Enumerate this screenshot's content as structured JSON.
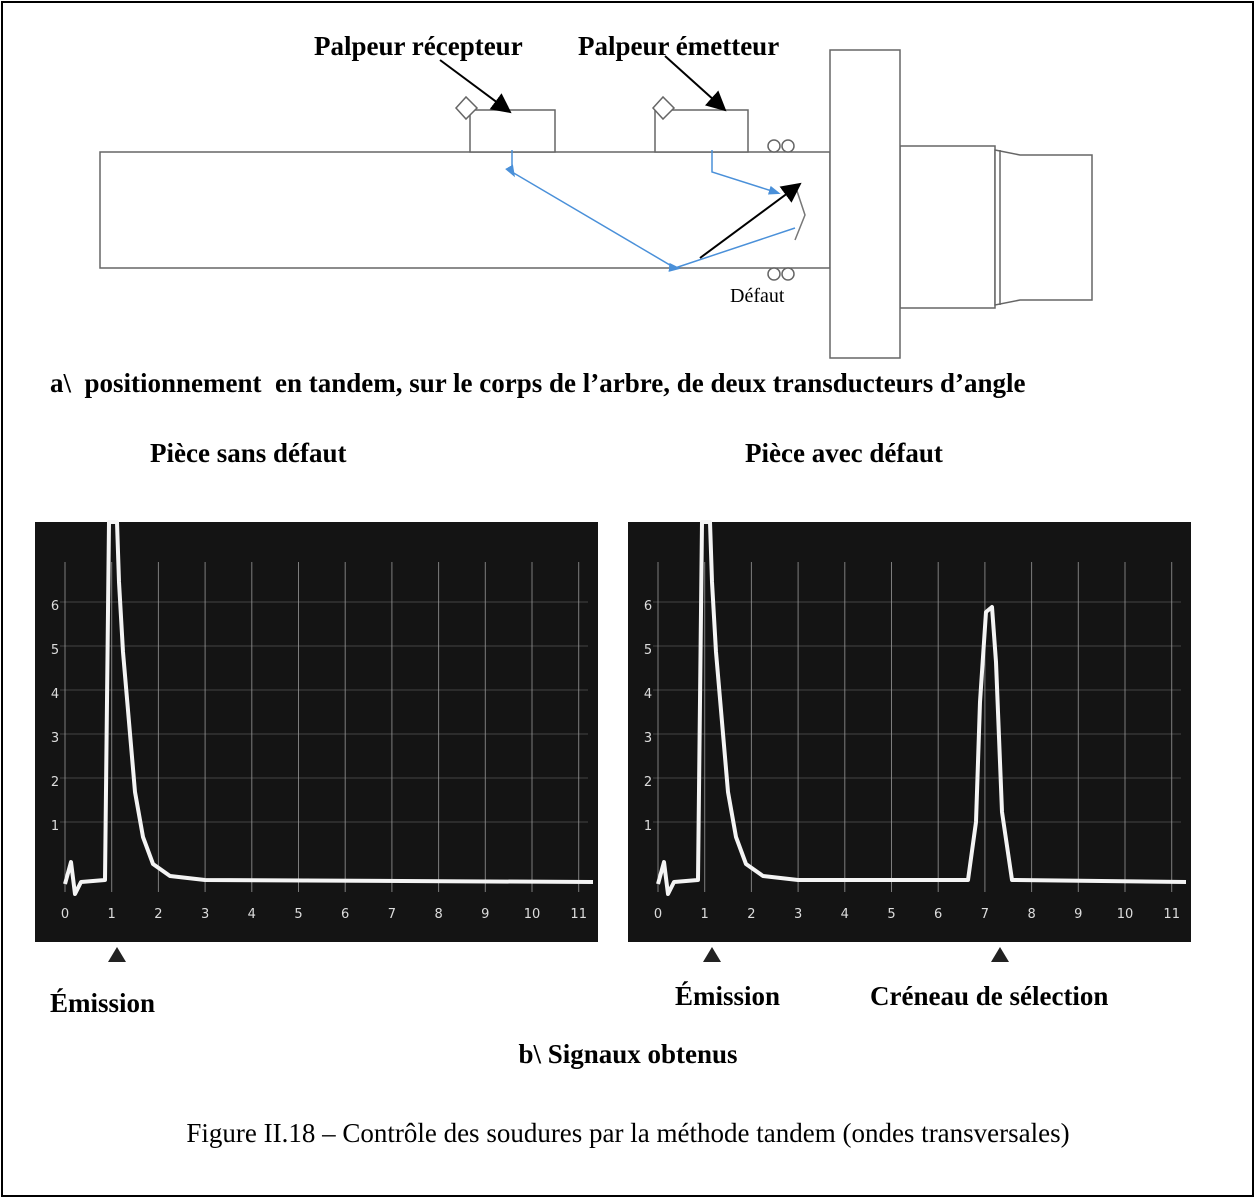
{
  "diagram": {
    "receiver_label": "Palpeur récepteur",
    "emitter_label": "Palpeur émetteur",
    "defect_label": "Défaut",
    "caption": "a\\  positionnement  en tandem, sur le corps de l’arbre, de deux transducteurs d’angle"
  },
  "signals": {
    "left": {
      "title": "Pièce sans défaut",
      "markers": [
        "Émission"
      ]
    },
    "right": {
      "title": "Pièce avec défaut",
      "markers": [
        "Émission",
        "Créneau de sélection"
      ]
    },
    "x_labels": [
      0,
      1,
      2,
      3,
      4,
      5,
      6,
      7,
      8,
      9,
      10,
      11
    ],
    "y_labels": [
      1,
      2,
      3,
      4,
      5,
      6
    ],
    "caption": "b\\ Signaux obtenus"
  },
  "figure_caption": "Figure II.18 – Contrôle des soudures par la méthode tandem (ondes transversales)"
}
